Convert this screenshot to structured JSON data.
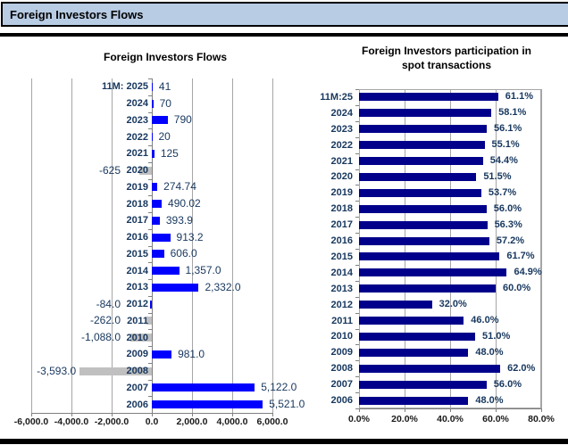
{
  "header": {
    "title": "Foreign Investors Flows"
  },
  "colors": {
    "header_bg": "#b8cce4",
    "positive_bar_blue": "#0000ff",
    "negative_bar_gray": "#c0c0c0",
    "participation_bar_navy": "#00008b",
    "label_text": "#17375e",
    "axis_text": "#1a1a1a",
    "gridline": "#a6a6a6",
    "axis_line": "#808080"
  },
  "chart_data": [
    {
      "type": "bar",
      "orientation": "horizontal",
      "title": "Foreign Investors Flows",
      "categories": [
        "11M: 2025",
        "2024",
        "2023",
        "2022",
        "2021",
        "2020",
        "2019",
        "2018",
        "2017",
        "2016",
        "2015",
        "2014",
        "2013",
        "2012",
        "2011",
        "2010",
        "2009",
        "2008",
        "2007",
        "2006"
      ],
      "values": [
        41,
        70,
        790,
        20,
        125,
        -625,
        274.74,
        490.02,
        393.9,
        913.2,
        606.0,
        1357.0,
        2332.0,
        -84.0,
        -262.0,
        -1088.0,
        981.0,
        -3593.0,
        5122.0,
        5521.0
      ],
      "value_labels": [
        "41",
        "70",
        "790",
        "20",
        "125",
        "-625",
        "274.74",
        "490.02",
        "393.9",
        "913.2",
        "606.0",
        "1,357.0",
        "2,332.0",
        "-84.0",
        "-262.0",
        "-1,088.0",
        "981.0",
        "-3,593.0",
        "5,122.0",
        "5,521.0"
      ],
      "bar_colors": [
        "#0000ff",
        "#0000ff",
        "#0000ff",
        "#0000ff",
        "#0000ff",
        "#c0c0c0",
        "#0000ff",
        "#0000ff",
        "#0000ff",
        "#0000ff",
        "#0000ff",
        "#0000ff",
        "#0000ff",
        "#0000ff",
        "#c0c0c0",
        "#c0c0c0",
        "#0000ff",
        "#c0c0c0",
        "#0000ff",
        "#0000ff"
      ],
      "xlim": [
        -6000,
        6000
      ],
      "x_ticks": [
        {
          "v": -6000,
          "label": "-6,000.0"
        },
        {
          "v": -4000,
          "label": "-4,000.0"
        },
        {
          "v": -2000,
          "label": "-2,000.0"
        },
        {
          "v": 0,
          "label": "0.0"
        },
        {
          "v": 2000,
          "label": "2,000.0"
        },
        {
          "v": 4000,
          "label": "4,000.0"
        },
        {
          "v": 6000,
          "label": "6,000.0"
        }
      ],
      "grid": true,
      "legend": false
    },
    {
      "type": "bar",
      "orientation": "horizontal",
      "title": "Foreign Investors participation in spot transactions",
      "title_lines": [
        "Foreign Investors participation in",
        "spot transactions"
      ],
      "categories": [
        "11M:25",
        "2024",
        "2023",
        "2022",
        "2021",
        "2020",
        "2019",
        "2018",
        "2017",
        "2016",
        "2015",
        "2014",
        "2013",
        "2012",
        "2011",
        "2010",
        "2009",
        "2008",
        "2007",
        "2006"
      ],
      "values": [
        61.1,
        58.1,
        56.1,
        55.1,
        54.4,
        51.5,
        53.7,
        56.0,
        56.3,
        57.2,
        61.7,
        64.9,
        60.0,
        32.0,
        46.0,
        51.0,
        48.0,
        62.0,
        56.0,
        48.0
      ],
      "value_labels": [
        "61.1%",
        "58.1%",
        "56.1%",
        "55.1%",
        "54.4%",
        "51.5%",
        "53.7%",
        "56.0%",
        "56.3%",
        "57.2%",
        "61.7%",
        "64.9%",
        "60.0%",
        "32.0%",
        "46.0%",
        "51.0%",
        "48.0%",
        "62.0%",
        "56.0%",
        "48.0%"
      ],
      "bar_color": "#00008b",
      "xlim": [
        0,
        80
      ],
      "x_ticks": [
        {
          "v": 0,
          "label": "0.0%"
        },
        {
          "v": 20,
          "label": "20.0%"
        },
        {
          "v": 40,
          "label": "40.0%"
        },
        {
          "v": 60,
          "label": "60.0%"
        },
        {
          "v": 80,
          "label": "80.0%"
        }
      ],
      "grid": true,
      "legend": false
    }
  ]
}
